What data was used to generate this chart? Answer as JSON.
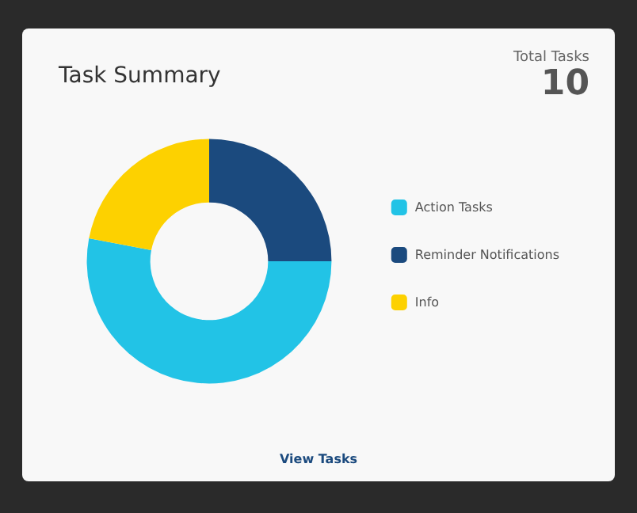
{
  "chart_data": {
    "type": "donut",
    "title": "Task Summary",
    "categories": [
      "Action Tasks",
      "Reminder Notifications",
      "Info"
    ],
    "values": [
      53,
      25,
      22
    ],
    "colors": [
      "#22c3e6",
      "#1b4a7e",
      "#fdd100"
    ],
    "legend": "right",
    "annotations": [
      "Total Tasks",
      "10",
      "View Tasks"
    ]
  }
}
